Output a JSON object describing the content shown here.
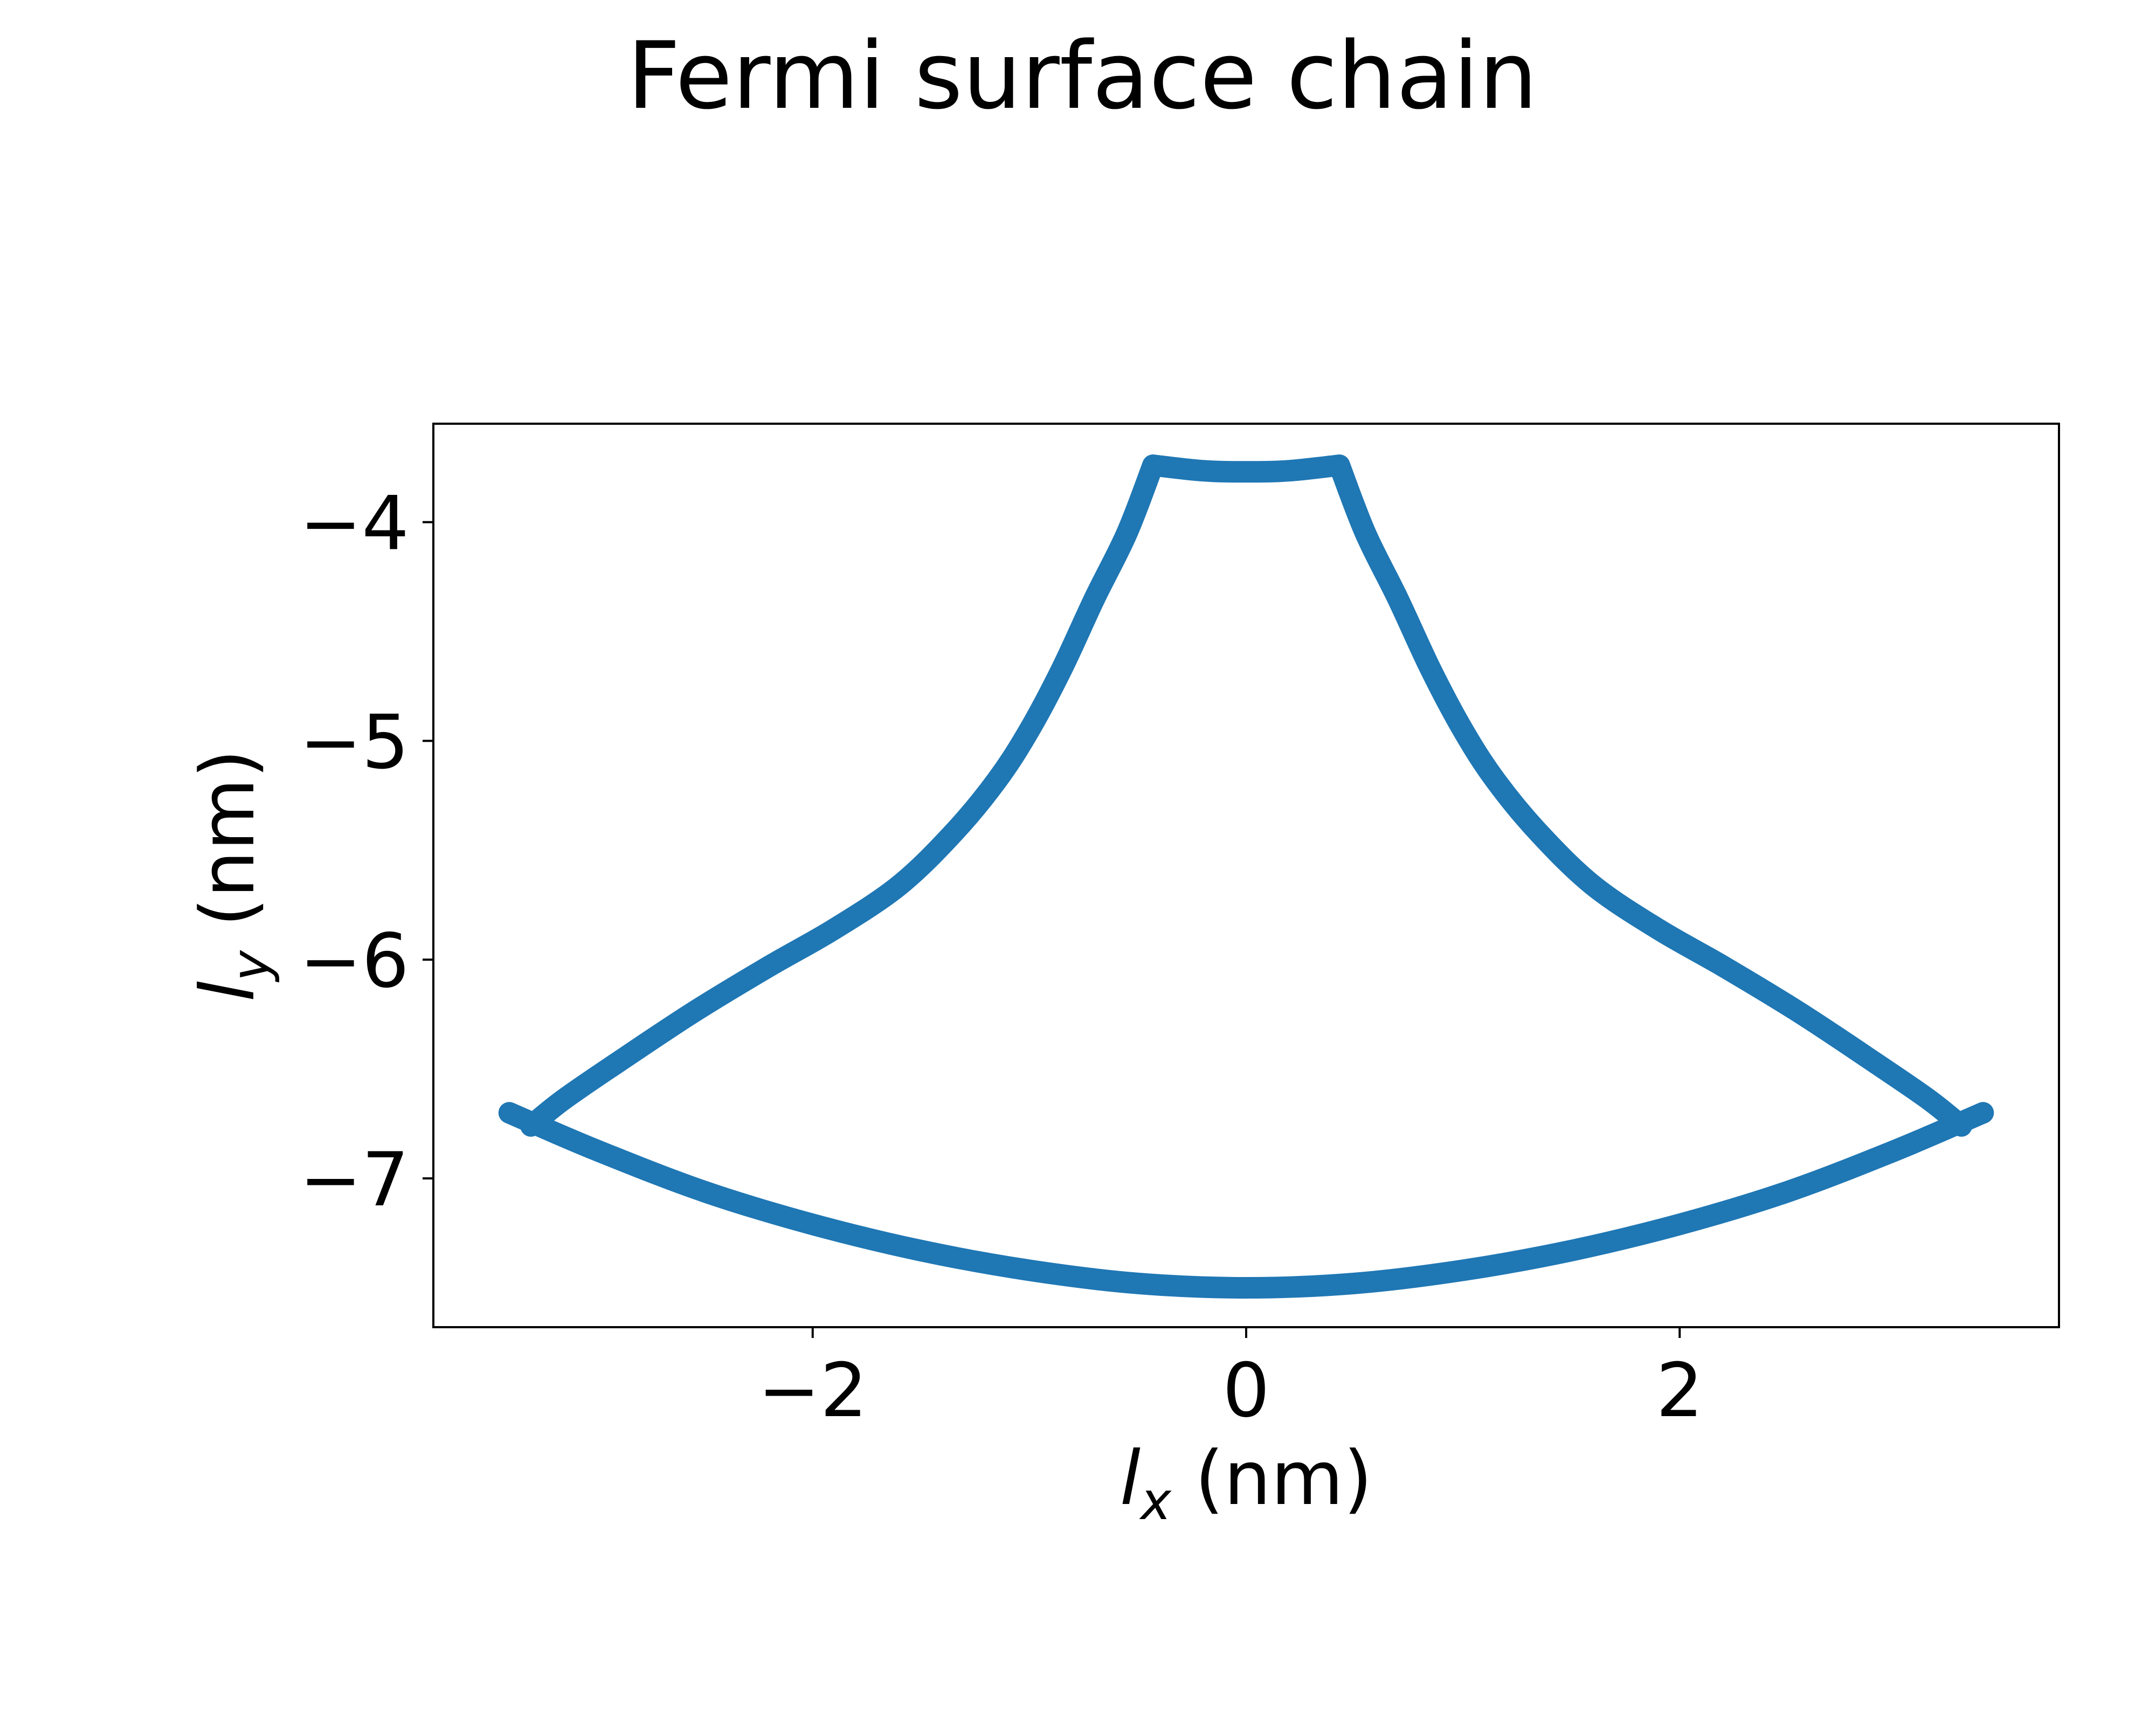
{
  "chart_data": {
    "type": "line",
    "title": "Fermi surface chain",
    "xlabel": {
      "symbol": "l",
      "subscript": "x",
      "unit": "(nm)"
    },
    "ylabel": {
      "symbol": "l",
      "subscript": "y",
      "unit": "(nm)"
    },
    "xlim": [
      -3.75,
      3.75
    ],
    "ylim": [
      -7.68,
      -3.55
    ],
    "xticks": [
      -2,
      0,
      2
    ],
    "xtick_labels": [
      "−2",
      "0",
      "2"
    ],
    "yticks": [
      -7,
      -6,
      -5,
      -4
    ],
    "ytick_labels": [
      "−7",
      "−6",
      "−5",
      "−4"
    ],
    "grid": false,
    "legend": "none",
    "line_color": "#1f77b4",
    "series": [
      {
        "values": [
          [
            -0.43,
            -3.74
          ],
          [
            -0.2,
            -3.765
          ],
          [
            0.0,
            -3.77
          ],
          [
            0.2,
            -3.765
          ],
          [
            0.43,
            -3.74
          ]
        ]
      },
      {
        "values": [
          [
            -0.43,
            -3.74
          ],
          [
            -0.55,
            -4.05
          ],
          [
            -0.7,
            -4.35
          ],
          [
            -0.85,
            -4.67
          ],
          [
            -1.0,
            -4.95
          ],
          [
            -1.15,
            -5.18
          ],
          [
            -1.35,
            -5.42
          ],
          [
            -1.6,
            -5.66
          ],
          [
            -1.9,
            -5.86
          ],
          [
            -2.2,
            -6.03
          ],
          [
            -2.55,
            -6.24
          ],
          [
            -2.9,
            -6.47
          ],
          [
            -3.15,
            -6.64
          ],
          [
            -3.3,
            -6.76
          ]
        ]
      },
      {
        "values": [
          [
            0.43,
            -3.74
          ],
          [
            0.55,
            -4.05
          ],
          [
            0.7,
            -4.35
          ],
          [
            0.85,
            -4.67
          ],
          [
            1.0,
            -4.95
          ],
          [
            1.15,
            -5.18
          ],
          [
            1.35,
            -5.42
          ],
          [
            1.6,
            -5.66
          ],
          [
            1.9,
            -5.86
          ],
          [
            2.2,
            -6.03
          ],
          [
            2.55,
            -6.24
          ],
          [
            2.9,
            -6.47
          ],
          [
            3.15,
            -6.64
          ],
          [
            3.3,
            -6.76
          ]
        ]
      },
      {
        "values": [
          [
            -3.4,
            -6.7
          ],
          [
            -3.0,
            -6.87
          ],
          [
            -2.5,
            -7.06
          ],
          [
            -2.0,
            -7.21
          ],
          [
            -1.5,
            -7.33
          ],
          [
            -1.0,
            -7.42
          ],
          [
            -0.5,
            -7.48
          ],
          [
            0.0,
            -7.5
          ],
          [
            0.5,
            -7.48
          ],
          [
            1.0,
            -7.42
          ],
          [
            1.5,
            -7.33
          ],
          [
            2.0,
            -7.21
          ],
          [
            2.5,
            -7.06
          ],
          [
            3.0,
            -6.87
          ],
          [
            3.4,
            -6.7
          ]
        ]
      }
    ]
  }
}
